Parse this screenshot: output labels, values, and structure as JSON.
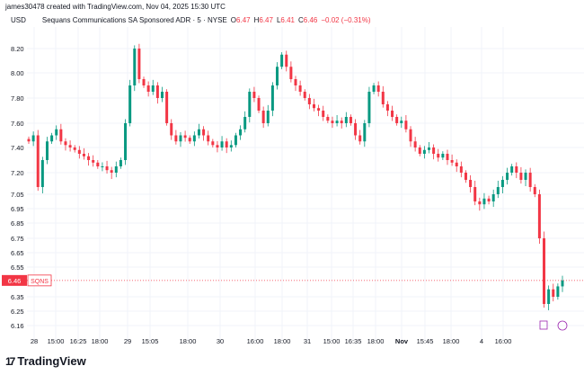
{
  "credit": "james30478 created with TradingView.com, Nov 04, 2025 15:30 UTC",
  "header": {
    "currency": "USD",
    "symbol": "Sequans Communications SA Sponsored ADR · 5 · NYSE",
    "o_label": "O",
    "o": "6.47",
    "h_label": "H",
    "h": "6.47",
    "l_label": "L",
    "l": "6.41",
    "c_label": "C",
    "c": "6.46",
    "change": "−0.02 (−0.31%)"
  },
  "brand": "TradingView",
  "chart_data": {
    "type": "candlestick",
    "title": "Sequans Communications SA Sponsored ADR · 5 · NYSE",
    "y_ticks": [
      "8.20",
      "8.00",
      "7.80",
      "7.60",
      "7.40",
      "7.20",
      "7.05",
      "6.95",
      "6.85",
      "6.75",
      "6.65",
      "6.55",
      "6.35",
      "6.25",
      "6.16"
    ],
    "x_ticks": [
      "28",
      "15:00",
      "16:25",
      "18:00",
      "29",
      "15:05",
      "18:00",
      "30",
      "16:00",
      "18:00",
      "31",
      "15:00",
      "16:35",
      "18:00",
      "Nov",
      "15:45",
      "18:00",
      "4",
      "16:00"
    ],
    "last_price": "6.46",
    "last_symbol": "SQNS",
    "closes": [
      7.45,
      7.5,
      7.1,
      7.3,
      7.45,
      7.5,
      7.55,
      7.45,
      7.42,
      7.4,
      7.38,
      7.35,
      7.33,
      7.3,
      7.28,
      7.25,
      7.25,
      7.22,
      7.2,
      7.25,
      7.3,
      7.6,
      7.9,
      8.2,
      7.95,
      7.9,
      7.85,
      7.9,
      7.8,
      7.85,
      7.6,
      7.5,
      7.45,
      7.5,
      7.48,
      7.45,
      7.5,
      7.55,
      7.5,
      7.45,
      7.42,
      7.4,
      7.45,
      7.4,
      7.42,
      7.5,
      7.55,
      7.65,
      7.85,
      7.8,
      7.7,
      7.6,
      7.7,
      7.9,
      8.05,
      8.15,
      8.05,
      7.95,
      7.9,
      7.85,
      7.8,
      7.75,
      7.72,
      7.7,
      7.65,
      7.62,
      7.6,
      7.62,
      7.6,
      7.65,
      7.6,
      7.5,
      7.45,
      7.6,
      7.85,
      7.9,
      7.85,
      7.75,
      7.7,
      7.65,
      7.6,
      7.62,
      7.55,
      7.45,
      7.4,
      7.35,
      7.38,
      7.4,
      7.35,
      7.32,
      7.35,
      7.3,
      7.28,
      7.25,
      7.2,
      7.15,
      7.1,
      7.0,
      6.98,
      7.02,
      7.0,
      7.05,
      7.1,
      7.15,
      7.2,
      7.25,
      7.2,
      7.15,
      7.2,
      7.1,
      7.05,
      6.75,
      6.3,
      6.4,
      6.35,
      6.42,
      6.46
    ],
    "up_color": "#089981",
    "down_color": "#f23645"
  }
}
